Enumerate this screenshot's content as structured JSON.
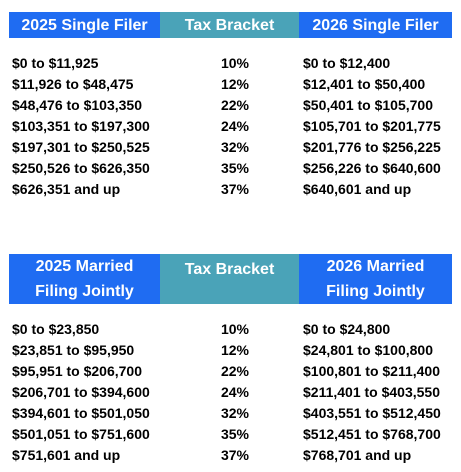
{
  "colors": {
    "header_blue": "#1f6cf2",
    "header_teal": "#4aa3b8",
    "text": "#000000",
    "header_text": "#ffffff"
  },
  "single": {
    "headers": {
      "left": "2025 Single Filer",
      "middle": "Tax Bracket",
      "right": "2026 Single Filer"
    },
    "left_values": [
      "$0 to $11,925",
      "$11,926 to $48,475",
      "$48,476 to $103,350",
      "$103,351 to $197,300",
      "$197,301 to $250,525",
      "$250,526 to $626,350",
      "$626,351 and up"
    ],
    "rates": [
      "10%",
      "12%",
      "22%",
      "24%",
      "32%",
      "35%",
      "37%"
    ],
    "right_values": [
      "$0 to $12,400",
      "$12,401 to $50,400",
      "$50,401 to $105,700",
      "$105,701 to $201,775",
      "$201,776 to $256,225",
      "$256,226 to $640,600",
      "$640,601 and up"
    ]
  },
  "married": {
    "headers": {
      "left_line1": "2025 Married",
      "left_line2": "Filing Jointly",
      "middle": "Tax Bracket",
      "right_line1": "2026 Married",
      "right_line2": "Filing Jointly"
    },
    "left_values": [
      "$0 to $23,850",
      "$23,851 to $95,950",
      "$95,951 to $206,700",
      "$206,701 to $394,600",
      "$394,601 to $501,050",
      "$501,051 to $751,600",
      "$751,601 and up"
    ],
    "rates": [
      "10%",
      "12%",
      "22%",
      "24%",
      "32%",
      "35%",
      "37%"
    ],
    "right_values": [
      "$0 to $24,800",
      "$24,801 to $100,800",
      "$100,801 to $211,400",
      "$211,401 to $403,550",
      "$403,551 to $512,450",
      "$512,451 to $768,700",
      "$768,701 and up"
    ]
  }
}
